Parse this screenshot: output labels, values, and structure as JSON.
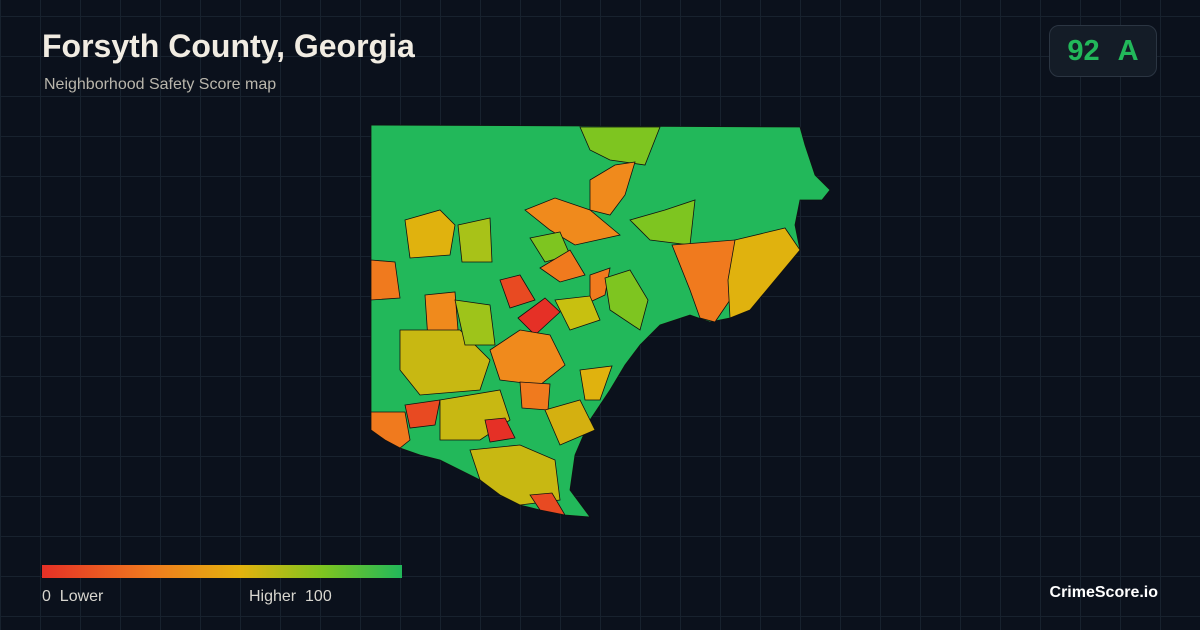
{
  "header": {
    "title": "Forsyth County, Georgia",
    "subtitle": "Neighborhood Safety Score map"
  },
  "score": {
    "value": 92,
    "grade": "A"
  },
  "legend": {
    "min": 0,
    "min_label": "Lower",
    "max_label": "Higher",
    "max": 100
  },
  "footer": {
    "brand": "CrimeScore.io"
  }
}
